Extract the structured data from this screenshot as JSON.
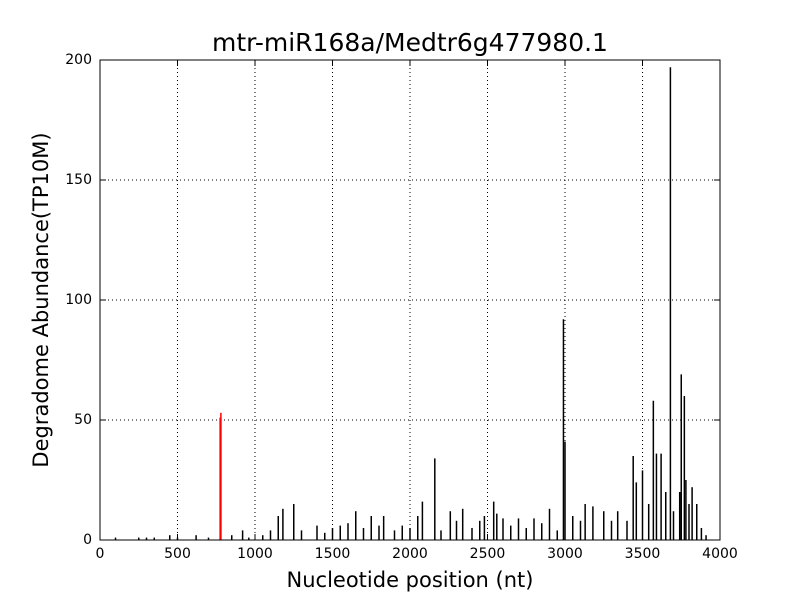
{
  "chart_data": {
    "type": "bar",
    "title": "mtr-miR168a/Medtr6g477980.1",
    "x_label": "Nucleotide position (nt)",
    "y_label": "Degradome Abundance(TP10M)",
    "xlim": [
      0,
      4000
    ],
    "ylim": [
      0,
      200
    ],
    "xticks": [
      0,
      500,
      1000,
      1500,
      2000,
      2500,
      3000,
      3500,
      4000
    ],
    "yticks": [
      0,
      50,
      100,
      150,
      200
    ],
    "grid": true,
    "series": [
      {
        "color": "#000000",
        "x": [
          100,
          250,
          300,
          350,
          450,
          500,
          620,
          700,
          850,
          920,
          960,
          1050,
          1100,
          1150,
          1180,
          1250,
          1300,
          1400,
          1450,
          1500,
          1550,
          1600,
          1650,
          1700,
          1750,
          1800,
          1830,
          1900,
          1950,
          2000,
          2050,
          2080,
          2160,
          2200,
          2260,
          2300,
          2340,
          2400,
          2450,
          2480,
          2540,
          2560,
          2600,
          2650,
          2700,
          2750,
          2800,
          2850,
          2900,
          2950,
          2990,
          3000,
          3050,
          3100,
          3130,
          3180,
          3250,
          3300,
          3340,
          3400,
          3440,
          3460,
          3500,
          3540,
          3570,
          3590,
          3620,
          3650,
          3680,
          3700,
          3740,
          3750,
          3770,
          3780,
          3800,
          3820,
          3850,
          3880,
          3910
        ],
        "values": [
          1,
          1,
          1,
          1,
          2,
          1,
          2,
          1,
          2,
          4,
          1,
          2,
          4,
          10,
          13,
          15,
          4,
          6,
          3,
          5,
          6,
          7,
          12,
          5,
          10,
          6,
          10,
          4,
          6,
          5,
          10,
          16,
          34,
          4,
          12,
          8,
          13,
          5,
          8,
          10,
          16,
          11,
          9,
          6,
          9,
          5,
          9,
          7,
          13,
          4,
          92,
          41,
          10,
          8,
          15,
          14,
          12,
          8,
          12,
          8,
          35,
          24,
          29,
          15,
          58,
          36,
          36,
          20,
          197,
          12,
          20,
          69,
          60,
          25,
          15,
          22,
          15,
          5,
          2
        ]
      },
      {
        "color": "#ff0000",
        "x": [
          775,
          780
        ],
        "values": [
          51,
          53
        ]
      }
    ]
  }
}
